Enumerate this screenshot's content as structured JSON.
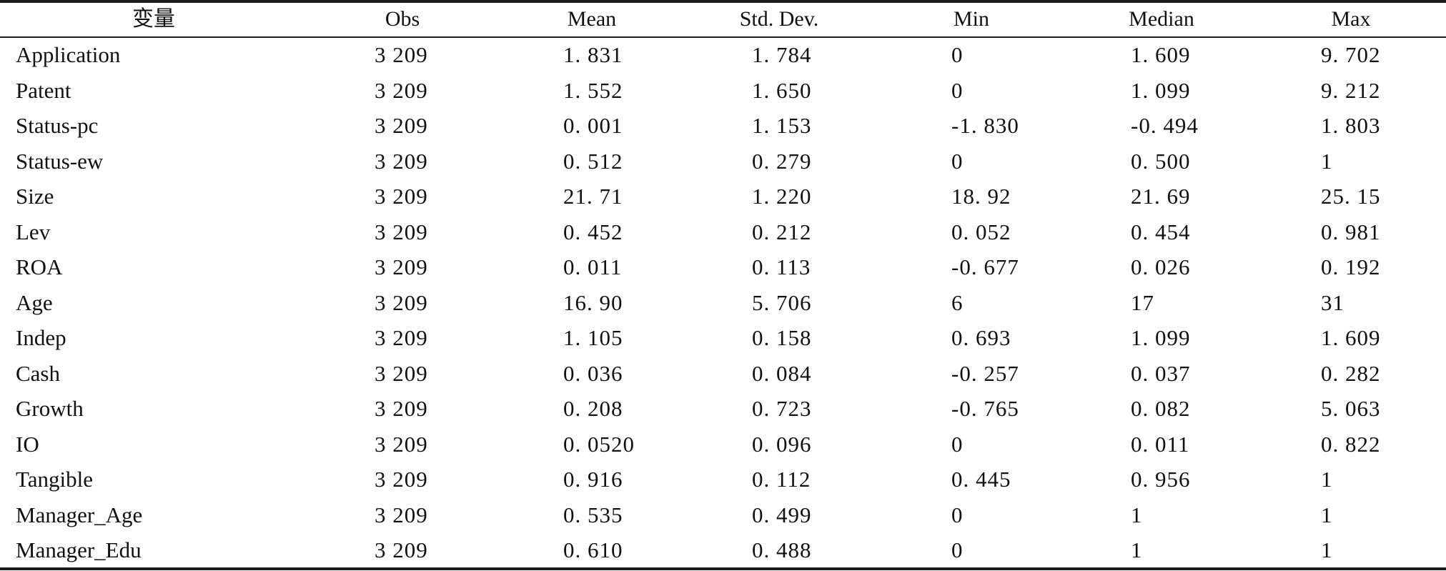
{
  "table": {
    "headers": [
      "变量",
      "Obs",
      "Mean",
      "Std. Dev.",
      "Min",
      "Median",
      "Max"
    ],
    "rows": [
      [
        "Application",
        "3 209",
        "1. 831",
        "1. 784",
        "0",
        "1. 609",
        "9. 702"
      ],
      [
        "Patent",
        "3 209",
        "1. 552",
        "1. 650",
        "0",
        "1. 099",
        "9. 212"
      ],
      [
        "Status-pc",
        "3 209",
        "0. 001",
        "1. 153",
        "-1. 830",
        "-0. 494",
        "1. 803"
      ],
      [
        "Status-ew",
        "3 209",
        "0. 512",
        "0. 279",
        "0",
        "0. 500",
        "1"
      ],
      [
        "Size",
        "3 209",
        "21. 71",
        "1. 220",
        "18. 92",
        "21. 69",
        "25. 15"
      ],
      [
        "Lev",
        "3 209",
        "0. 452",
        "0. 212",
        "0. 052",
        "0. 454",
        "0. 981"
      ],
      [
        "ROA",
        "3 209",
        "0. 011",
        "0. 113",
        "-0. 677",
        "0. 026",
        "0. 192"
      ],
      [
        "Age",
        "3 209",
        "16. 90",
        "5. 706",
        "6",
        "17",
        "31"
      ],
      [
        "Indep",
        "3 209",
        "1. 105",
        "0. 158",
        "0. 693",
        "1. 099",
        "1. 609"
      ],
      [
        "Cash",
        "3 209",
        "0. 036",
        "0. 084",
        "-0. 257",
        "0. 037",
        "0. 282"
      ],
      [
        "Growth",
        "3 209",
        "0. 208",
        "0. 723",
        "-0. 765",
        "0. 082",
        "5. 063"
      ],
      [
        "IO",
        "3 209",
        "0. 0520",
        "0. 096",
        "0",
        "0. 011",
        "0. 822"
      ],
      [
        "Tangible",
        "3 209",
        "0. 916",
        "0. 112",
        "0. 445",
        "0. 956",
        "1"
      ],
      [
        "Manager_Age",
        "3 209",
        "0. 535",
        "0. 499",
        "0",
        "1",
        "1"
      ],
      [
        "Manager_Edu",
        "3 209",
        "0. 610",
        "0. 488",
        "0",
        "1",
        "1"
      ]
    ]
  }
}
